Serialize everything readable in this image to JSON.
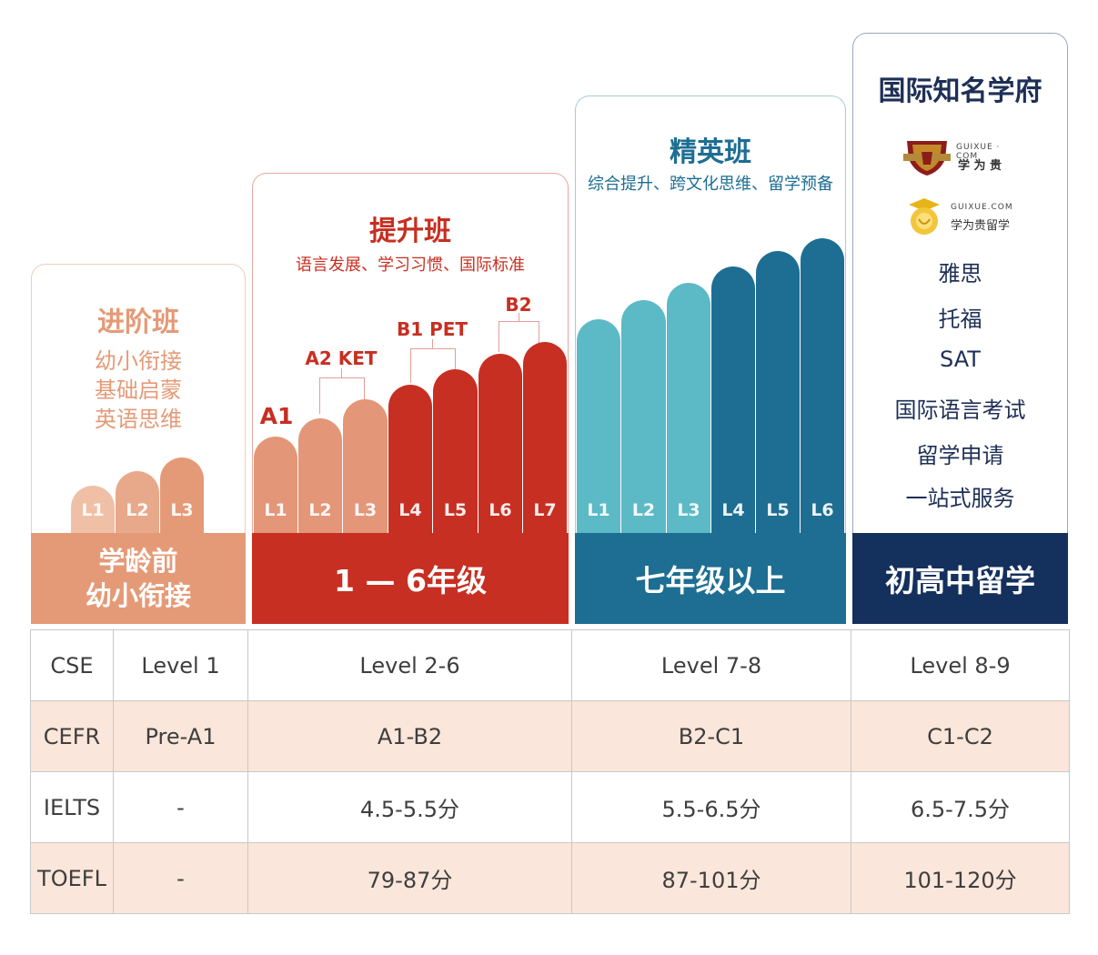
{
  "colors": {
    "peach": "#e59a77",
    "peach_light": "#efc0a6",
    "red": "#c72f22",
    "red_light": "#e39678",
    "teal_light": "#5cb9c6",
    "teal_dark": "#1d6e92",
    "navy": "#14305d",
    "row_alt": "#fae6da"
  },
  "columns": [
    {
      "title": "进阶班",
      "subtitle_lines": [
        "幼小衔接",
        "基础启蒙",
        "英语思维"
      ],
      "band": [
        "学龄前",
        "幼小衔接"
      ],
      "bars": [
        "L1",
        "L2",
        "L3"
      ]
    },
    {
      "title": "提升班",
      "subtitle": "语言发展、学习习惯、国际标准",
      "band": [
        "1 — 6年级"
      ],
      "bars": [
        "L1",
        "L2",
        "L3",
        "L4",
        "L5",
        "L6",
        "L7"
      ],
      "level_marks": [
        "A1",
        "A2 KET",
        "B1 PET",
        "B2"
      ]
    },
    {
      "title": "精英班",
      "subtitle": "综合提升、跨文化思维、留学预备",
      "band": [
        "七年级以上"
      ],
      "bars": [
        "L1",
        "L2",
        "L3",
        "L4",
        "L5",
        "L6"
      ]
    },
    {
      "title": "国际知名学府",
      "logos": [
        {
          "icon": "shield-crest-icon",
          "brand_top": "GUIXUE · COM",
          "brand_bottom": "学 为 贵"
        },
        {
          "icon": "lion-head-icon",
          "brand_top": "GUIXUE.COM",
          "brand_bottom": "学为贵留学"
        }
      ],
      "items": [
        "雅思",
        "托福",
        "SAT",
        "国际语言考试",
        "留学申请",
        "一站式服务"
      ],
      "band": [
        "初高中留学"
      ]
    }
  ],
  "table": {
    "rows": [
      [
        "CSE",
        "Level 1",
        "Level 2-6",
        "Level 7-8",
        "Level 8-9"
      ],
      [
        "CEFR",
        "Pre-A1",
        "A1-B2",
        "B2-C1",
        "C1-C2"
      ],
      [
        "IELTS",
        "-",
        "4.5-5.5分",
        "5.5-6.5分",
        "6.5-7.5分"
      ],
      [
        "TOEFL",
        "-",
        "79-87分",
        "87-101分",
        "101-120分"
      ]
    ]
  }
}
